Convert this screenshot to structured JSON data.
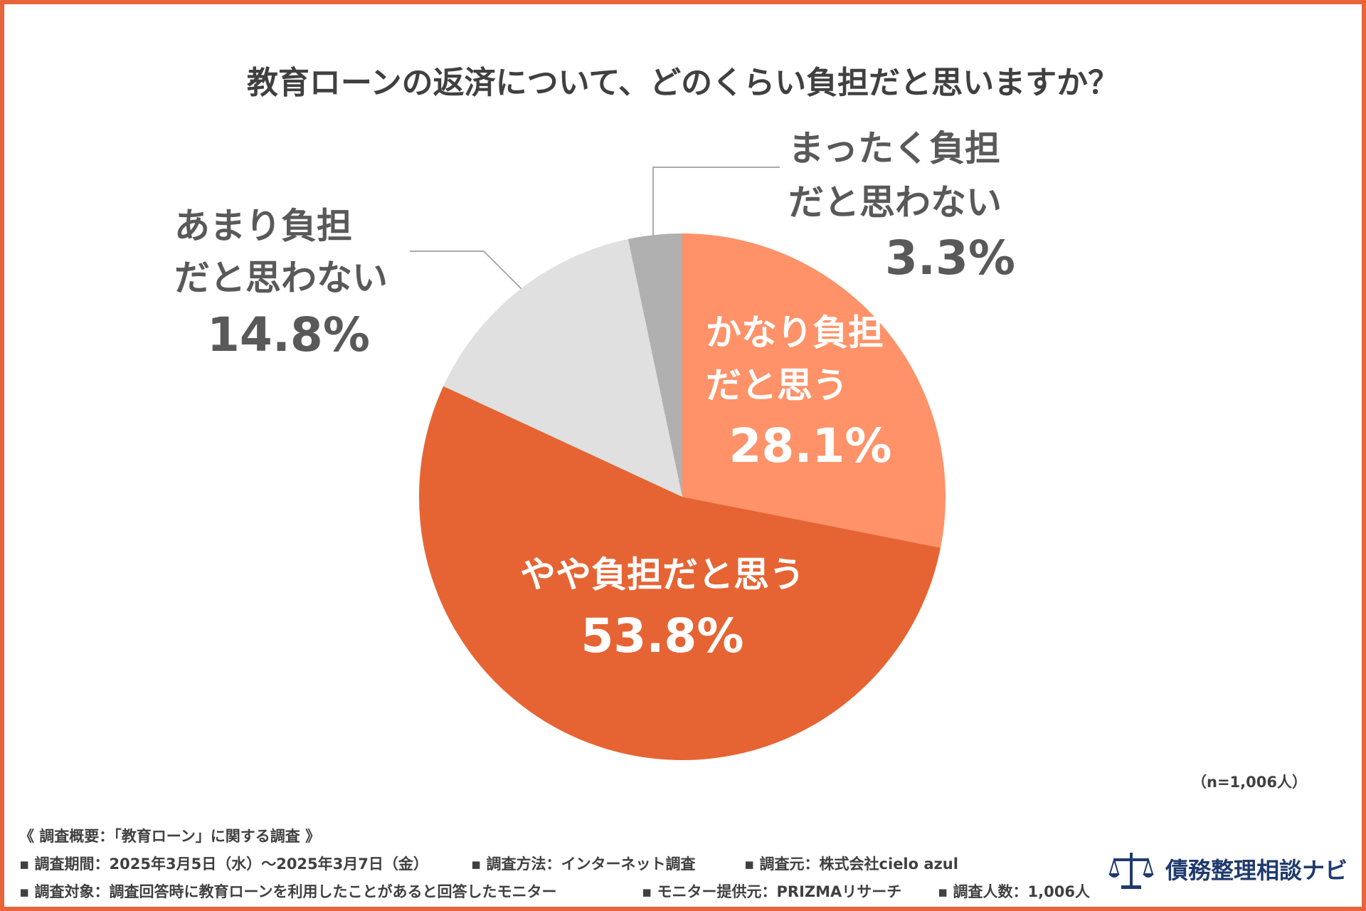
{
  "chart_data": {
    "type": "pie",
    "title": "教育ローンの返済について、どのくらい負担だと思いますか？",
    "categories": [
      [
        "かなり負担",
        "だと思う"
      ],
      [
        "やや負担だと思う"
      ],
      [
        "あまり負担",
        "だと思わない"
      ],
      [
        "まったく負担",
        "だと思わない"
      ]
    ],
    "values": [
      28.1,
      53.8,
      14.8,
      3.3
    ],
    "value_labels": [
      "28.1%",
      "53.8%",
      "14.8%",
      "3.3%"
    ],
    "colors": [
      "#ff9268",
      "#e66433",
      "#e0e0e0",
      "#b0b0b0"
    ],
    "sample_note": "（n=1,006人）"
  },
  "survey": {
    "heading": "《 調査概要：「教育ローン」に関する調査 》",
    "lines": [
      [
        "▪ 調査期間：2025年3月5日（水）〜2025年3月7日（金）",
        "▪ 調査方法：インターネット調査",
        "▪ 調査元：株式会社cielo azul"
      ],
      [
        "▪ 調査対象：調査回答時に教育ローンを利用したことがあると回答したモニター",
        "▪ モニター提供元：PRIZMAリサーチ",
        "▪ 調査人数：1,006人"
      ]
    ]
  },
  "logo": {
    "text": "債務整理相談ナビ"
  }
}
